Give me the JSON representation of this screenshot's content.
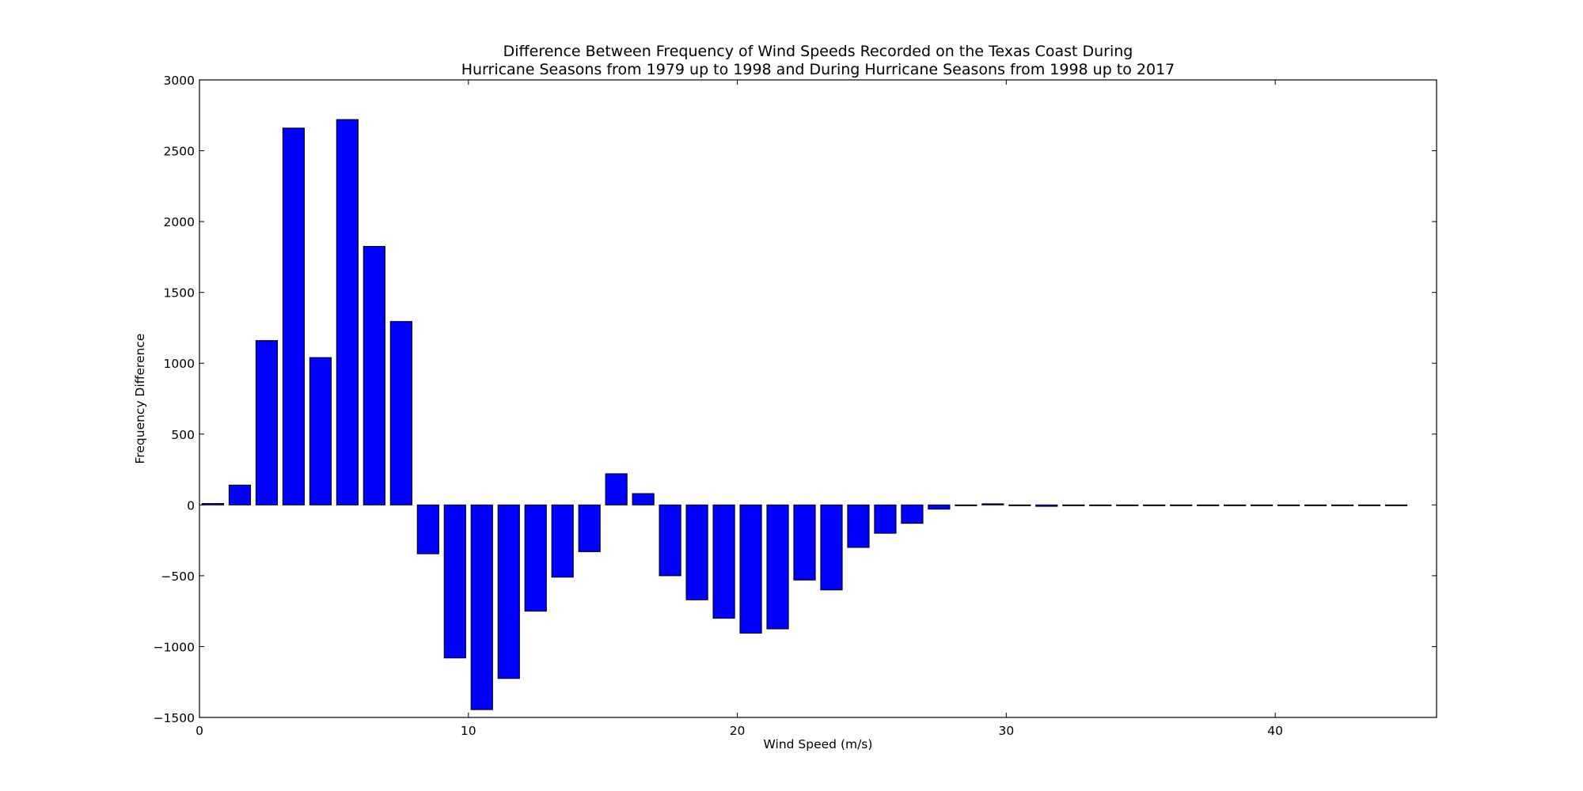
{
  "chart_data": {
    "type": "bar",
    "title": "Difference Between Frequency of Wind Speeds Recorded on the Texas Coast During Hurricane Seasons from 1979 up to 1998 and During Hurricane Seasons from 1998 up to 2017",
    "title_lines": [
      "Difference Between Frequency of Wind Speeds Recorded on the Texas Coast During",
      "Hurricane Seasons from 1979 up to 1998 and During Hurricane Seasons from 1998 up to 2017"
    ],
    "xlabel": "Wind Speed (m/s)",
    "ylabel": "Frequency Difference",
    "xlim": [
      0,
      46
    ],
    "ylim": [
      -1500,
      3000
    ],
    "xticks": [
      0,
      10,
      20,
      30,
      40
    ],
    "yticks": [
      -1500,
      -1000,
      -500,
      0,
      500,
      1000,
      1500,
      2000,
      2500,
      3000
    ],
    "bar_width": 0.8,
    "grid": false,
    "bar_color": "#0000ff",
    "x": [
      0,
      1,
      2,
      3,
      4,
      5,
      6,
      7,
      8,
      9,
      10,
      11,
      12,
      13,
      14,
      15,
      16,
      17,
      18,
      19,
      20,
      21,
      22,
      23,
      24,
      25,
      26,
      27,
      28,
      29,
      30,
      31,
      32,
      33,
      34,
      35,
      36,
      37,
      38,
      39,
      40,
      41,
      42,
      43,
      44
    ],
    "values": [
      10,
      140,
      1160,
      2660,
      1040,
      2720,
      1825,
      1295,
      -345,
      -1080,
      -1445,
      -1225,
      -750,
      -510,
      -330,
      220,
      80,
      -500,
      -670,
      -800,
      -905,
      -875,
      -530,
      -600,
      -300,
      -200,
      -130,
      -30,
      0,
      8,
      -5,
      -10,
      0,
      0,
      0,
      0,
      0,
      0,
      0,
      0,
      0,
      0,
      0,
      0,
      0
    ]
  }
}
